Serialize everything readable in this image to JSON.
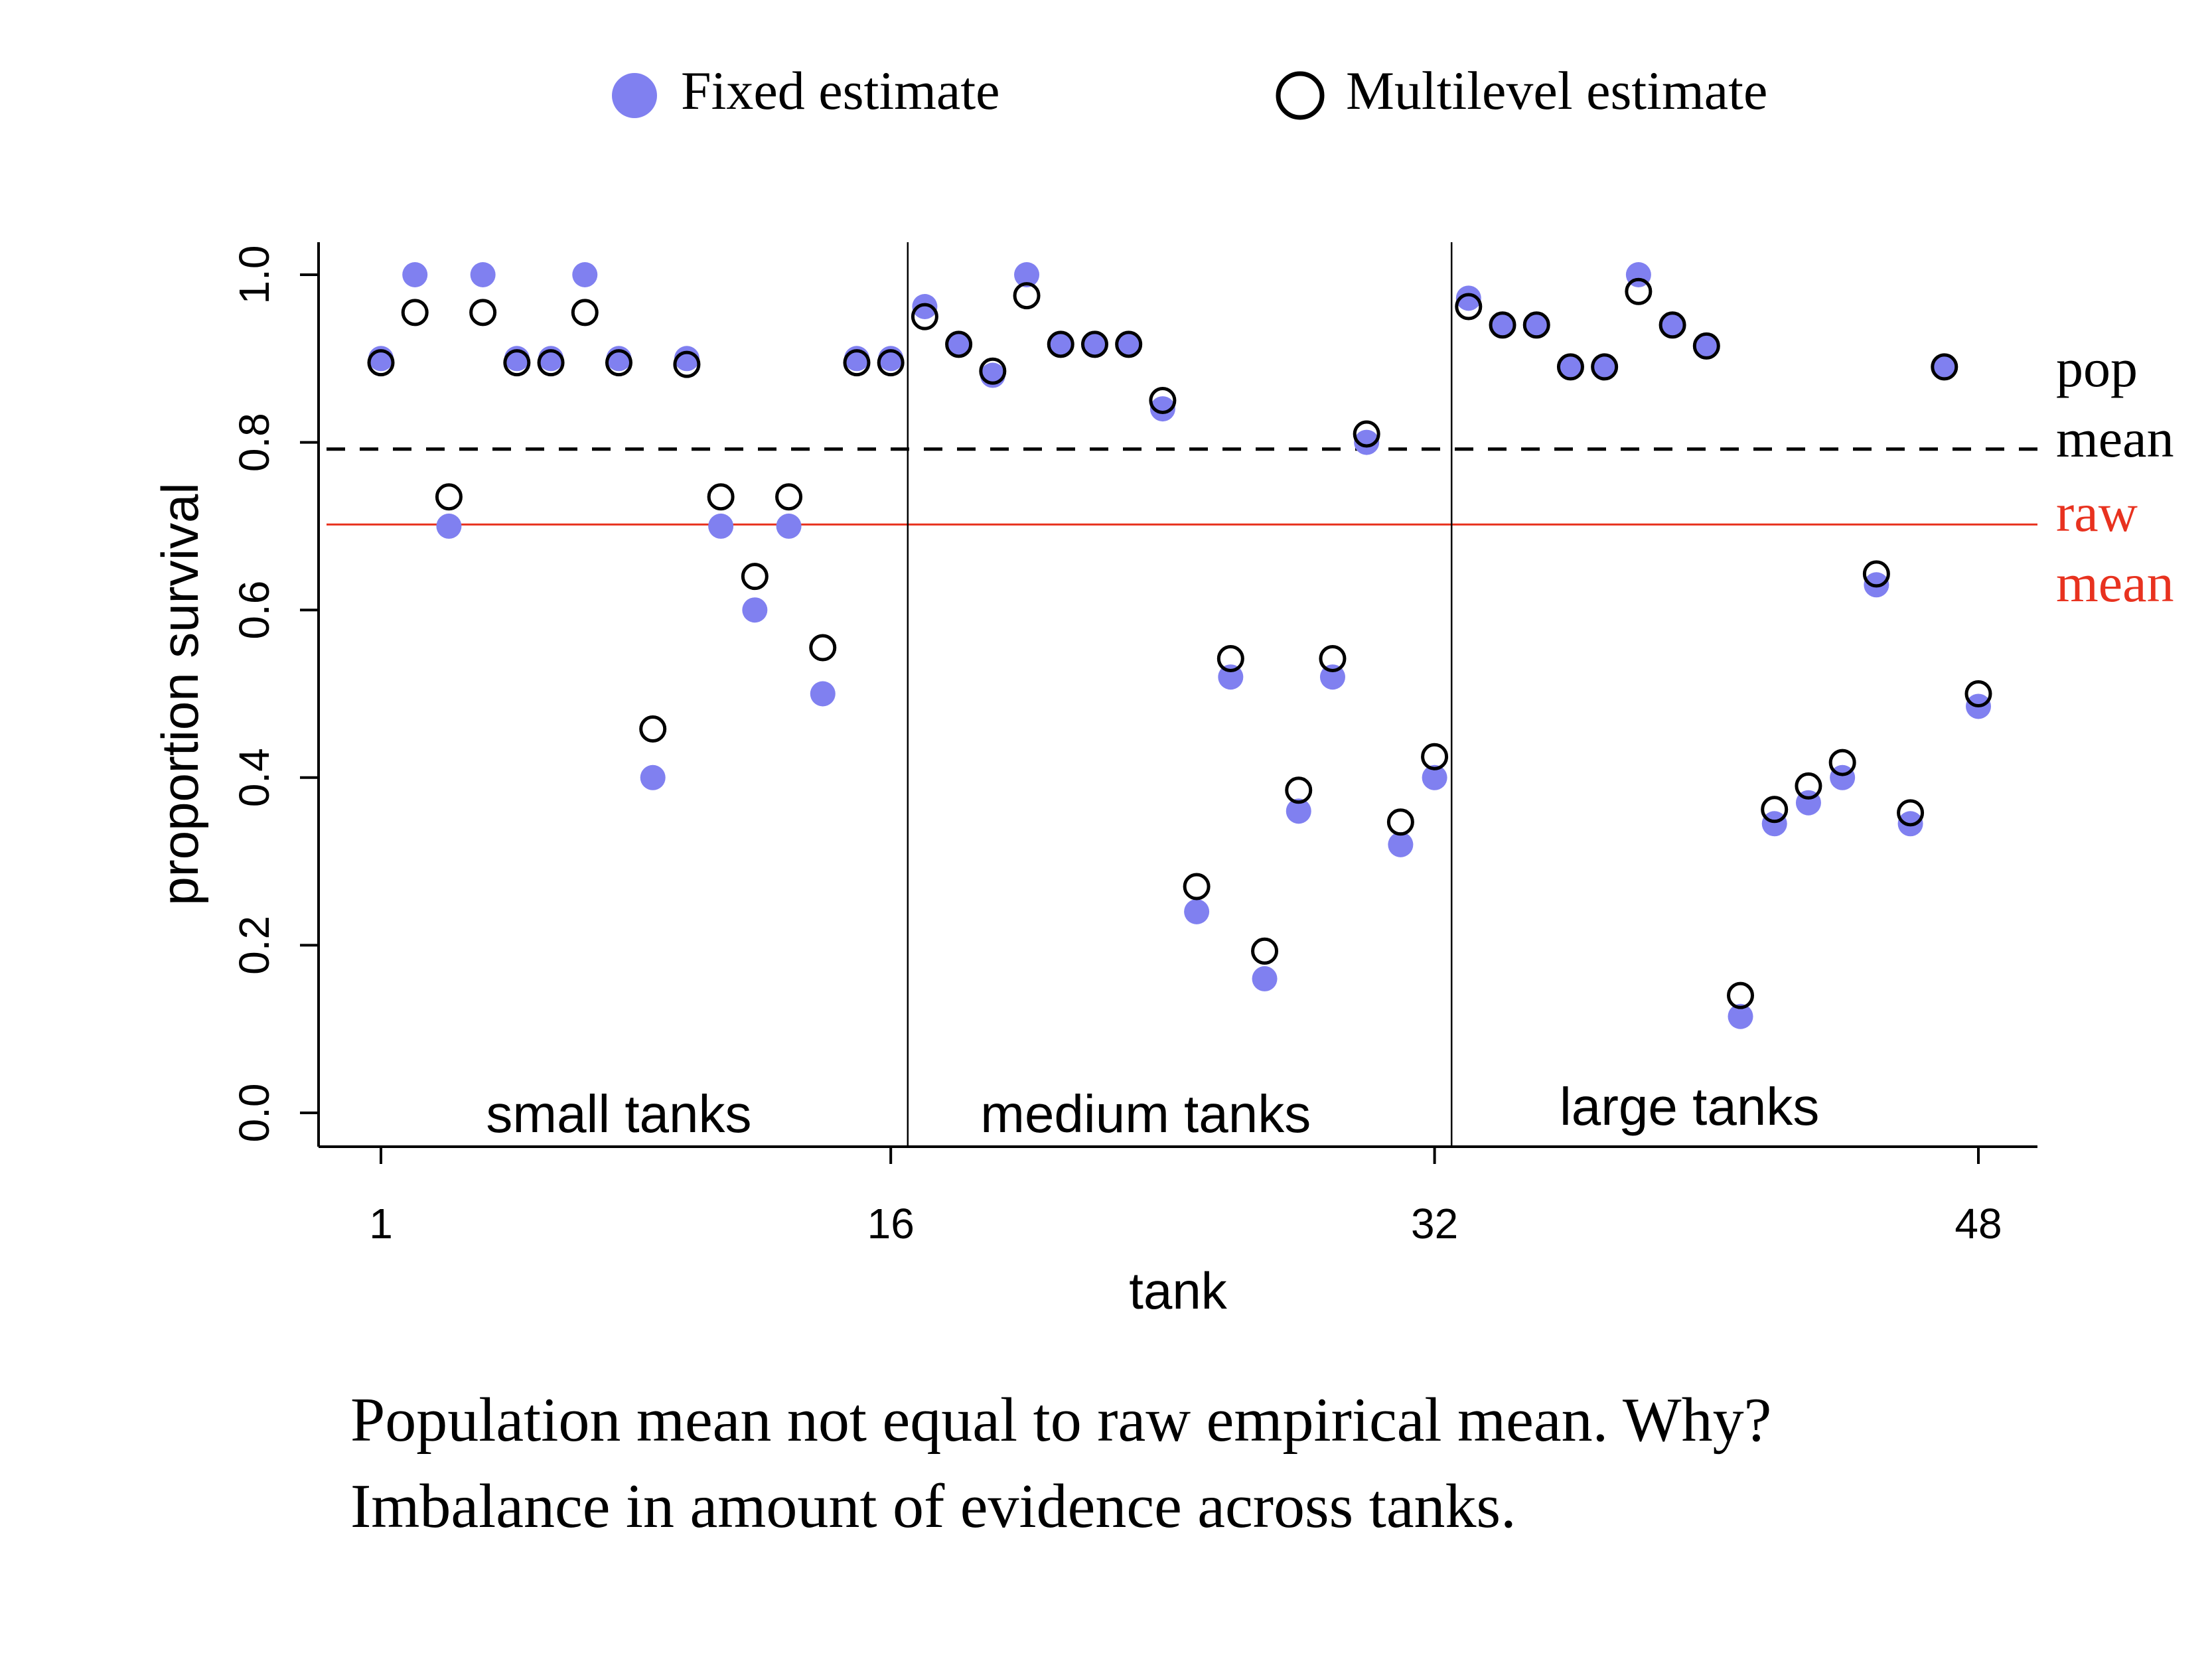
{
  "chart_data": {
    "type": "scatter",
    "xlabel": "tank",
    "ylabel": "proportion survival",
    "xlim": [
      1,
      48
    ],
    "ylim": [
      0,
      1
    ],
    "x_ticks": [
      1,
      16,
      32,
      48
    ],
    "y_ticks": [
      "0.0",
      "0.2",
      "0.4",
      "0.6",
      "0.8",
      "1.0"
    ],
    "legend_position": "top",
    "group_boundaries": [
      16.5,
      32.5
    ],
    "group_labels": [
      {
        "label": "small tanks",
        "center": 8.0
      },
      {
        "label": "medium tanks",
        "center": 23.5
      },
      {
        "label": "large tanks",
        "center": 39.5
      }
    ],
    "series": [
      {
        "name": "Fixed estimate",
        "marker": "filled",
        "color": "#8080f0",
        "values": [
          0.9,
          1.0,
          0.7,
          1.0,
          0.9,
          0.9,
          1.0,
          0.9,
          0.4,
          0.9,
          0.7,
          0.6,
          0.7,
          0.5,
          0.9,
          0.9,
          0.962,
          0.917,
          0.88,
          1.0,
          0.917,
          0.917,
          0.917,
          0.84,
          0.24,
          0.52,
          0.16,
          0.36,
          0.52,
          0.8,
          0.32,
          0.4,
          0.972,
          0.94,
          0.94,
          0.89,
          0.89,
          1.0,
          0.94,
          0.915,
          0.115,
          0.345,
          0.37,
          0.4,
          0.63,
          0.345,
          0.89,
          0.485
        ]
      },
      {
        "name": "Multilevel estimate",
        "marker": "open",
        "color": "#000000",
        "values": [
          0.895,
          0.955,
          0.735,
          0.955,
          0.895,
          0.895,
          0.955,
          0.895,
          0.458,
          0.893,
          0.735,
          0.64,
          0.735,
          0.555,
          0.895,
          0.895,
          0.95,
          0.917,
          0.885,
          0.975,
          0.917,
          0.917,
          0.917,
          0.85,
          0.27,
          0.542,
          0.193,
          0.385,
          0.542,
          0.81,
          0.347,
          0.425,
          0.962,
          0.94,
          0.94,
          0.89,
          0.89,
          0.98,
          0.94,
          0.915,
          0.14,
          0.362,
          0.39,
          0.418,
          0.643,
          0.358,
          0.89,
          0.5
        ]
      }
    ],
    "reference_lines": [
      {
        "label_lines": [
          "pop",
          "mean"
        ],
        "value": 0.792,
        "style": "dashed",
        "color": "#000000"
      },
      {
        "label_lines": [
          "raw",
          "mean"
        ],
        "value": 0.702,
        "style": "solid",
        "color": "#e8321f"
      }
    ]
  },
  "caption": {
    "line1": "Population mean not equal to raw empirical mean. Why?",
    "line2": "Imbalance in amount of evidence across tanks."
  }
}
